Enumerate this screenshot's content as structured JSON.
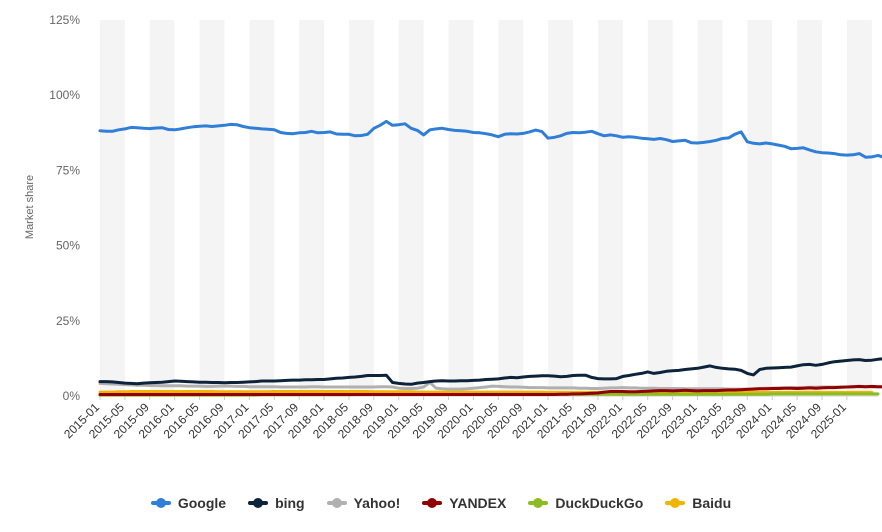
{
  "chart_data": {
    "type": "line",
    "ylabel": "Market share",
    "ylim": [
      0,
      125
    ],
    "yticks": [
      "0%",
      "25%",
      "50%",
      "75%",
      "100%",
      "125%"
    ],
    "ytick_values": [
      0,
      25,
      50,
      75,
      100,
      125
    ],
    "xticks": [
      "2015-01",
      "2015-05",
      "2015-09",
      "2016-01",
      "2016-05",
      "2016-09",
      "2017-01",
      "2017-05",
      "2017-09",
      "2018-01",
      "2018-05",
      "2018-09",
      "2019-01",
      "2019-05",
      "2019-09",
      "2020-01",
      "2020-05",
      "2020-09",
      "2021-01",
      "2021-05",
      "2021-09",
      "2022-01",
      "2022-05",
      "2022-09",
      "2023-01",
      "2023-05",
      "2023-09",
      "2024-01",
      "2024-05",
      "2024-09",
      "2025-01"
    ],
    "x_start": "2015-01",
    "x_end": "2025-06",
    "grid": "alternating vertical bands",
    "legend_position": "bottom",
    "series": [
      {
        "name": "Google",
        "color": "#2f7ed8",
        "values": [
          88.2,
          88,
          88,
          88.5,
          88.8,
          89.3,
          89.2,
          89,
          88.9,
          89.1,
          89.2,
          88.6,
          88.5,
          88.8,
          89.2,
          89.5,
          89.7,
          89.8,
          89.6,
          89.8,
          90,
          90.3,
          90.2,
          89.6,
          89.2,
          89,
          88.8,
          88.7,
          88.5,
          87.6,
          87.3,
          87.2,
          87.5,
          87.6,
          88,
          87.5,
          87.6,
          87.8,
          87.1,
          87,
          87,
          86.5,
          86.6,
          87,
          89,
          90,
          91.3,
          90,
          90.2,
          90.5,
          89,
          88.3,
          86.8,
          88.5,
          88.8,
          89,
          88.6,
          88.3,
          88.2,
          88,
          87.6,
          87.5,
          87.2,
          86.8,
          86.2,
          87,
          87.2,
          87.1,
          87.3,
          87.8,
          88.4,
          87.9,
          85.7,
          86,
          86.5,
          87.3,
          87.6,
          87.5,
          87.7,
          88,
          87.2,
          86.5,
          86.8,
          86.5,
          86,
          86.2,
          86,
          85.7,
          85.5,
          85.3,
          85.6,
          85.2,
          84.6,
          84.8,
          85,
          84.2,
          84.1,
          84.3,
          84.6,
          85,
          85.6,
          85.8,
          87,
          87.8,
          84.5,
          84,
          83.8,
          84.1,
          83.8,
          83.4,
          83,
          82.2,
          82.3,
          82.5,
          81.8,
          81.2,
          80.9,
          80.8,
          80.6,
          80.2,
          80.1,
          80.2,
          80.6,
          79.4,
          79.5,
          80,
          79.3
        ]
      },
      {
        "name": "bing",
        "color": "#0d233a",
        "values": [
          4.8,
          4.8,
          4.7,
          4.5,
          4.3,
          4.2,
          4.1,
          4.3,
          4.4,
          4.5,
          4.6,
          4.8,
          5,
          4.9,
          4.8,
          4.7,
          4.6,
          4.6,
          4.5,
          4.5,
          4.4,
          4.5,
          4.5,
          4.6,
          4.7,
          4.8,
          5,
          5,
          5,
          5.1,
          5.2,
          5.3,
          5.3,
          5.4,
          5.4,
          5.5,
          5.5,
          5.7,
          5.9,
          6,
          6.2,
          6.3,
          6.5,
          6.8,
          6.8,
          6.8,
          6.9,
          4.5,
          4.2,
          4,
          3.9,
          4.3,
          4.5,
          4.8,
          5,
          5.1,
          5,
          5,
          5.1,
          5.1,
          5.2,
          5.3,
          5.5,
          5.6,
          5.7,
          6,
          6.2,
          6.1,
          6.3,
          6.5,
          6.6,
          6.7,
          6.7,
          6.6,
          6.4,
          6.5,
          6.8,
          6.9,
          6.9,
          6.2,
          5.8,
          5.7,
          5.7,
          5.8,
          6.5,
          6.8,
          7.2,
          7.5,
          8,
          7.5,
          7.8,
          8.2,
          8.4,
          8.5,
          8.8,
          9,
          9.2,
          9.6,
          10,
          9.5,
          9.2,
          9,
          8.9,
          8.5,
          7.5,
          7,
          8.8,
          9.2,
          9.3,
          9.4,
          9.5,
          9.6,
          10,
          10.4,
          10.5,
          10.2,
          10.5,
          11,
          11.4,
          11.6,
          11.8,
          12,
          12.1,
          11.8,
          11.9,
          12.2,
          12.4,
          12.5
        ]
      },
      {
        "name": "Yahoo!",
        "color": "#b0b0b0",
        "values": [
          4.2,
          4.1,
          4,
          3.9,
          3.8,
          3.7,
          3.6,
          3.6,
          3.5,
          3.5,
          3.4,
          3.4,
          3.4,
          3.4,
          3.3,
          3.3,
          3.3,
          3.2,
          3.2,
          3.3,
          3.3,
          3.3,
          3.2,
          3.2,
          3.1,
          3.1,
          3.1,
          3.1,
          3.1,
          3,
          3,
          3,
          3,
          3,
          3.1,
          3.1,
          3,
          3,
          3,
          3,
          3,
          3,
          3,
          3,
          3,
          3.1,
          3.1,
          3,
          2.6,
          2.5,
          2.5,
          2.6,
          3,
          4.5,
          2.6,
          2.4,
          2.3,
          2.3,
          2.3,
          2.4,
          2.6,
          2.8,
          3,
          3.3,
          3.2,
          3.1,
          3,
          3,
          2.9,
          2.8,
          2.8,
          2.8,
          2.7,
          2.7,
          2.7,
          2.7,
          2.7,
          2.6,
          2.6,
          2.5,
          2.5,
          2.6,
          2.7,
          2.7,
          2.8,
          2.7,
          2.7,
          2.6,
          2.6,
          2.6,
          2.5,
          2.5,
          2.5,
          2.5,
          2.4,
          2.4,
          2.4,
          2.4,
          2.4,
          2.4,
          2.4,
          2.3,
          2.3,
          2.3,
          2.3,
          2.4,
          2.5,
          2.6,
          2.6,
          2.7,
          2.7,
          2.8,
          2.8,
          2.8,
          2.9,
          2.9,
          3,
          3,
          3,
          3,
          3,
          3.1,
          3.1,
          3.1,
          3,
          3,
          3
        ]
      },
      {
        "name": "YANDEX",
        "color": "#910000",
        "values": [
          0.5,
          0.5,
          0.5,
          0.5,
          0.5,
          0.5,
          0.5,
          0.5,
          0.5,
          0.5,
          0.5,
          0.5,
          0.5,
          0.5,
          0.5,
          0.5,
          0.5,
          0.5,
          0.5,
          0.5,
          0.5,
          0.5,
          0.5,
          0.5,
          0.5,
          0.5,
          0.5,
          0.5,
          0.5,
          0.5,
          0.5,
          0.5,
          0.5,
          0.5,
          0.5,
          0.5,
          0.5,
          0.5,
          0.5,
          0.5,
          0.5,
          0.5,
          0.5,
          0.5,
          0.5,
          0.5,
          0.5,
          0.5,
          0.5,
          0.5,
          0.5,
          0.5,
          0.5,
          0.5,
          0.5,
          0.5,
          0.5,
          0.5,
          0.5,
          0.5,
          0.5,
          0.5,
          0.5,
          0.5,
          0.5,
          0.5,
          0.5,
          0.5,
          0.5,
          0.5,
          0.5,
          0.5,
          0.5,
          0.5,
          0.6,
          0.6,
          0.7,
          0.7,
          0.8,
          0.9,
          1,
          1.3,
          1.5,
          1.5,
          1.5,
          1.4,
          1.4,
          1.5,
          1.6,
          1.7,
          1.8,
          1.8,
          1.7,
          1.8,
          1.9,
          1.8,
          1.7,
          1.8,
          1.8,
          1.8,
          1.9,
          2,
          2,
          2.1,
          2.2,
          2.3,
          2.4,
          2.4,
          2.5,
          2.5,
          2.6,
          2.6,
          2.5,
          2.6,
          2.7,
          2.6,
          2.7,
          2.8,
          2.8,
          2.9,
          3,
          3.1,
          3.2,
          3.1,
          3.2,
          3.1,
          3.1
        ]
      },
      {
        "name": "DuckDuckGo",
        "color": "#8bbc21",
        "values": [
          0.3,
          0.3,
          0.3,
          0.3,
          0.3,
          0.3,
          0.3,
          0.3,
          0.3,
          0.3,
          0.3,
          0.3,
          0.3,
          0.3,
          0.3,
          0.3,
          0.3,
          0.3,
          0.3,
          0.3,
          0.3,
          0.3,
          0.3,
          0.3,
          0.3,
          0.3,
          0.4,
          0.4,
          0.4,
          0.4,
          0.4,
          0.4,
          0.4,
          0.4,
          0.4,
          0.4,
          0.4,
          0.4,
          0.4,
          0.4,
          0.4,
          0.5,
          0.5,
          0.5,
          0.5,
          0.5,
          0.5,
          0.5,
          0.5,
          0.5,
          0.5,
          0.5,
          0.5,
          0.5,
          0.5,
          0.5,
          0.5,
          0.5,
          0.5,
          0.5,
          0.6,
          0.6,
          0.6,
          0.6,
          0.6,
          0.6,
          0.6,
          0.6,
          0.6,
          0.6,
          0.6,
          0.6,
          0.6,
          0.6,
          0.6,
          0.6,
          0.6,
          0.6,
          0.6,
          0.6,
          0.6,
          0.6,
          0.6,
          0.6,
          0.6,
          0.6,
          0.6,
          0.6,
          0.6,
          0.6,
          0.6,
          0.6,
          0.6,
          0.6,
          0.6,
          0.6,
          0.6,
          0.6,
          0.6,
          0.6,
          0.6,
          0.6,
          0.6,
          0.6,
          0.6,
          0.6,
          0.6,
          0.6,
          0.7,
          0.7,
          0.7,
          0.7,
          0.7,
          0.7,
          0.7,
          0.7,
          0.7,
          0.7,
          0.7,
          0.7,
          0.7,
          0.7,
          0.7,
          0.7,
          0.7,
          0.7
        ]
      },
      {
        "name": "Baidu",
        "color": "#f1b400",
        "values": [
          1.3,
          1.3,
          1.3,
          1.4,
          1.4,
          1.5,
          1.5,
          1.5,
          1.5,
          1.5,
          1.5,
          1.5,
          1.5,
          1.5,
          1.5,
          1.5,
          1.5,
          1.5,
          1.5,
          1.4,
          1.4,
          1.4,
          1.4,
          1.4,
          1.4,
          1.4,
          1.4,
          1.4,
          1.5,
          1.5,
          1.5,
          1.5,
          1.5,
          1.5,
          1.5,
          1.5,
          1.5,
          1.5,
          1.5,
          1.5,
          1.5,
          1.5,
          1.5,
          1.5,
          1.4,
          1.4,
          1.4,
          1.4,
          1.4,
          1.4,
          1.4,
          1.3,
          1.3,
          1.3,
          1.3,
          1.3,
          1.3,
          1.3,
          1.3,
          1.3,
          1.3,
          1.3,
          1.3,
          1.3,
          1.3,
          1.3,
          1.3,
          1.3,
          1.3,
          1.3,
          1.3,
          1.3,
          1.2,
          1.2,
          1.2,
          1.2,
          1.2,
          1.2,
          1.2,
          1.2,
          1.2,
          1.2,
          1.2,
          1.2,
          1.2,
          1.2,
          1.2,
          1.2,
          1.2,
          1.2,
          1.2,
          1.2,
          1.2,
          1.2,
          1.2,
          1.2,
          1.2,
          1.2,
          1.2,
          1.2,
          1.2,
          1.2,
          1.2,
          1.2,
          1.2,
          1.2,
          1.2,
          1.2,
          1.2,
          1.2,
          1.2,
          1.2,
          1.2,
          1.2,
          1.2,
          1.2,
          1.2,
          1.2,
          1.2,
          1.2,
          1.2,
          1.2,
          1.2,
          1.2,
          1.2
        ]
      }
    ]
  }
}
